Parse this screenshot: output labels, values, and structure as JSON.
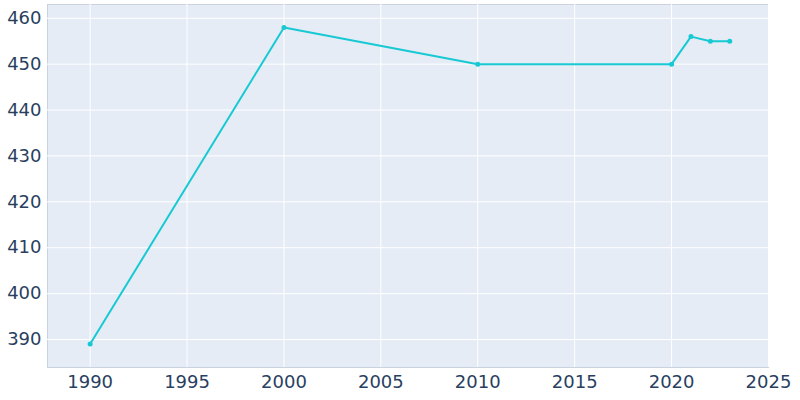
{
  "chart_data": {
    "type": "line",
    "x": [
      1990,
      2000,
      2010,
      2020,
      2021,
      2022,
      2023
    ],
    "values": [
      389,
      458,
      450,
      450,
      456,
      455,
      455
    ],
    "color": "#17c9d3",
    "marker": "circle",
    "xlim": [
      1987.8,
      2025
    ],
    "xticks": [
      1990,
      1995,
      2000,
      2005,
      2010,
      2015,
      2020,
      2025
    ],
    "ylim": [
      383.9,
      463
    ],
    "yticks": [
      390,
      400,
      410,
      420,
      430,
      440,
      450,
      460
    ],
    "grid": true
  }
}
